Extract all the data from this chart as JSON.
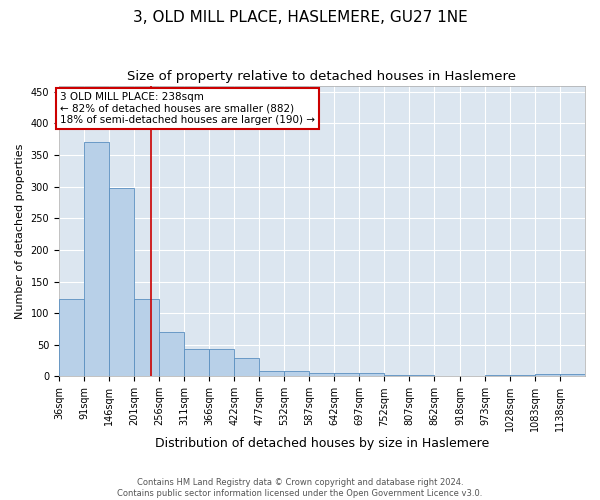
{
  "title": "3, OLD MILL PLACE, HASLEMERE, GU27 1NE",
  "subtitle": "Size of property relative to detached houses in Haslemere",
  "xlabel": "Distribution of detached houses by size in Haslemere",
  "ylabel": "Number of detached properties",
  "bins": [
    36,
    91,
    146,
    201,
    256,
    311,
    366,
    422,
    477,
    532,
    587,
    642,
    697,
    752,
    807,
    862,
    918,
    973,
    1028,
    1083,
    1138
  ],
  "counts": [
    122,
    370,
    298,
    122,
    70,
    43,
    43,
    29,
    8,
    8,
    5,
    5,
    6,
    2,
    2,
    1,
    1,
    2,
    2,
    3,
    3
  ],
  "bar_color": "#b8d0e8",
  "bar_edge_color": "#5a8fc0",
  "vline_x": 238,
  "vline_color": "#cc0000",
  "ylim": [
    0,
    460
  ],
  "yticks": [
    0,
    50,
    100,
    150,
    200,
    250,
    300,
    350,
    400,
    450
  ],
  "annotation_text": "3 OLD MILL PLACE: 238sqm\n← 82% of detached houses are smaller (882)\n18% of semi-detached houses are larger (190) →",
  "annotation_box_color": "#ffffff",
  "annotation_box_edge_color": "#cc0000",
  "footer_text": "Contains HM Land Registry data © Crown copyright and database right 2024.\nContains public sector information licensed under the Open Government Licence v3.0.",
  "bg_color": "#dce6f0",
  "title_fontsize": 11,
  "subtitle_fontsize": 9.5,
  "tick_fontsize": 7,
  "ylabel_fontsize": 8,
  "xlabel_fontsize": 9
}
